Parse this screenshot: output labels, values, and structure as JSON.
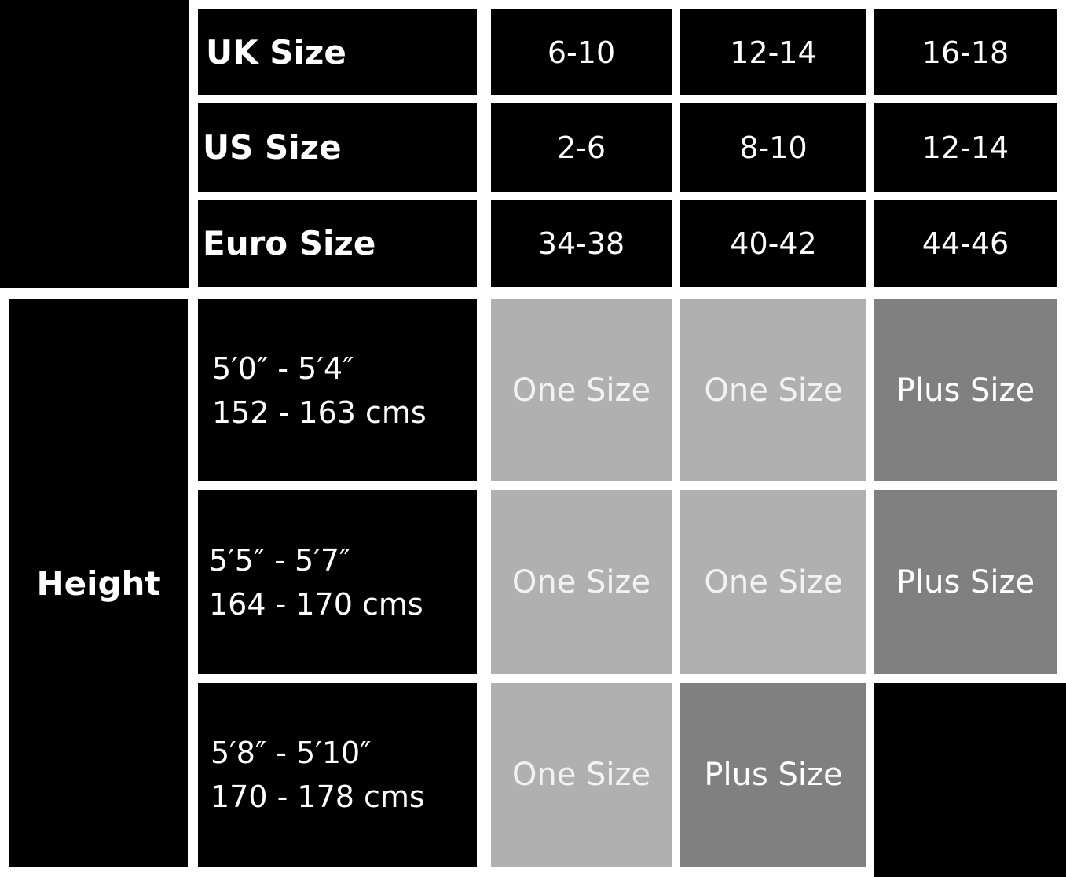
{
  "header_rows": [
    {
      "label": "UK Size",
      "values": [
        "6-10",
        "12-14",
        "16-18"
      ]
    },
    {
      "label": "US Size",
      "values": [
        "2-6",
        "8-10",
        "12-14"
      ]
    },
    {
      "label": "Euro Size",
      "values": [
        "34-38",
        "40-42",
        "44-46"
      ]
    }
  ],
  "height_label": "Height",
  "height_rows": [
    {
      "imperial": "5′0″ - 5′4″",
      "metric": "152 - 163 cms",
      "values": [
        "One Size",
        "One Size",
        "Plus Size"
      ]
    },
    {
      "imperial": "5′5″ - 5′7″",
      "metric": "164 - 170 cms",
      "values": [
        "One Size",
        "One Size",
        "Plus Size"
      ]
    },
    {
      "imperial": "5′8″ - 5′10″",
      "metric": "170 - 178 cms",
      "values": [
        "One Size",
        "Plus Size",
        ""
      ]
    }
  ],
  "colors": {
    "one_size": "#b0b0b0",
    "plus_size": "#808080",
    "background": "#000000"
  }
}
